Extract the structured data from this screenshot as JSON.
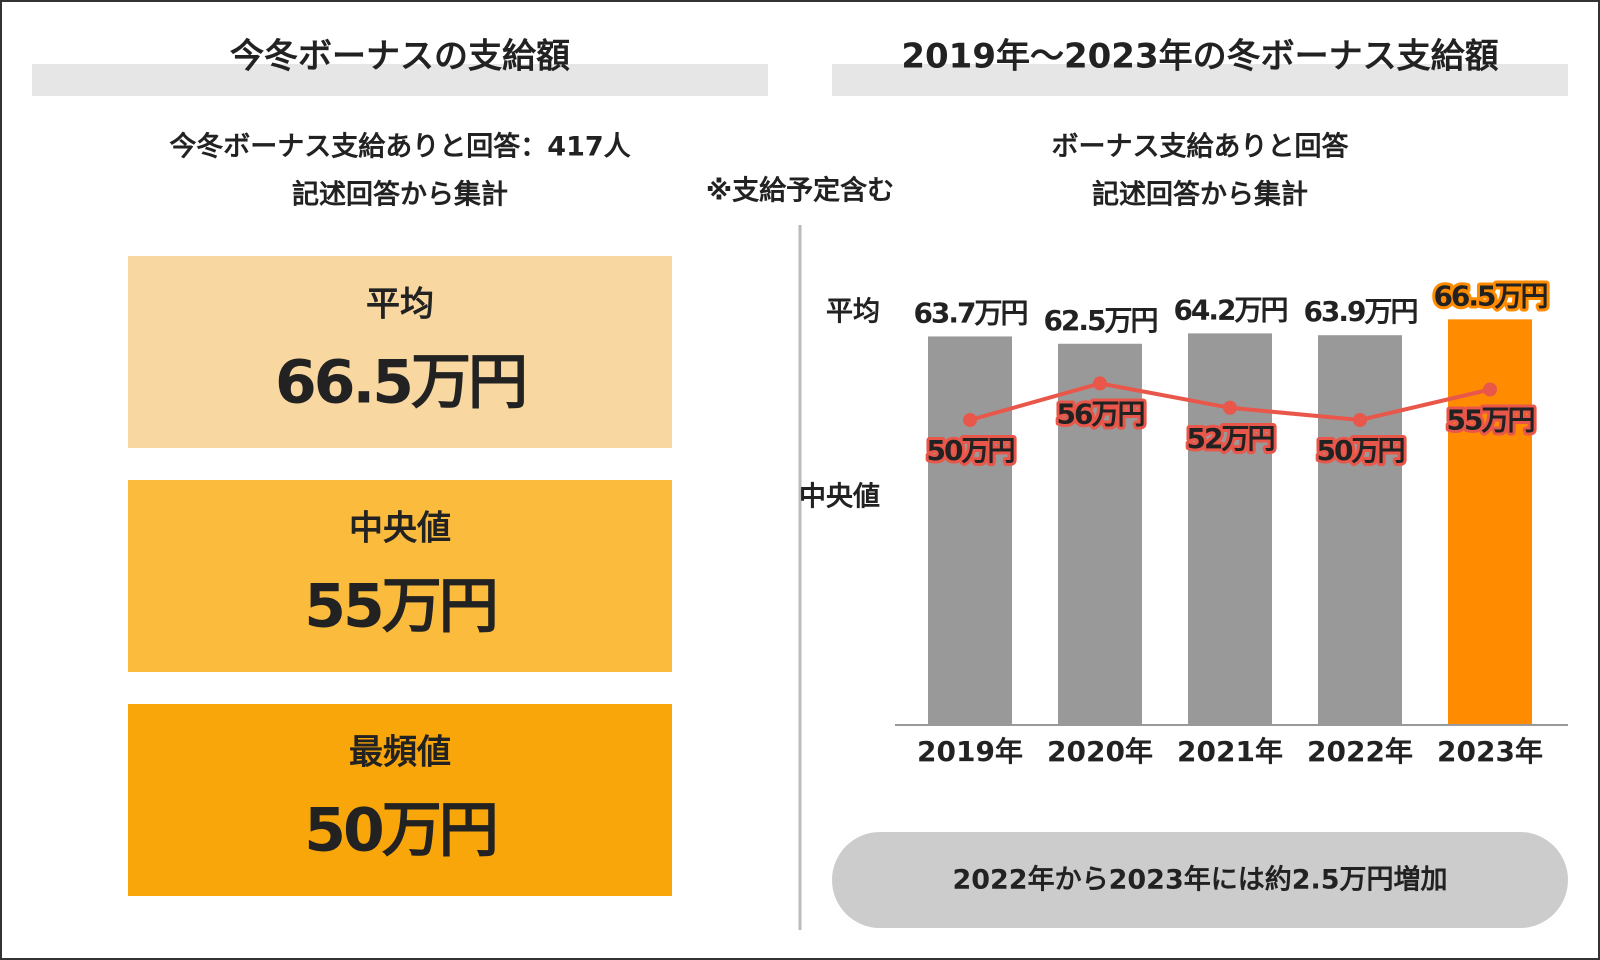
{
  "left": {
    "title": "今冬ボーナスの支給額",
    "subtitle": [
      "今冬ボーナス支給ありと回答：417人",
      "記述回答から集計"
    ],
    "cards": [
      {
        "label": "平均",
        "value": "66.5万円",
        "color": "#f8d7a0"
      },
      {
        "label": "中央値",
        "value": "55万円",
        "color": "#fbbb3c"
      },
      {
        "label": "最頻値",
        "value": "50万円",
        "color": "#f9a60a"
      }
    ]
  },
  "note": "※支給予定含む",
  "chart_data": {
    "type": "bar-line",
    "title": "2019年～2023年の冬ボーナス支給額",
    "subtitle": [
      "ボーナス支給ありと回答",
      "記述回答から集計"
    ],
    "categories": [
      "2019年",
      "2020年",
      "2021年",
      "2022年",
      "2023年"
    ],
    "series": [
      {
        "name": "平均",
        "type": "bar",
        "color": "#999999",
        "colors": [
          "#999999",
          "#999999",
          "#999999",
          "#999999",
          "#ff8c00"
        ],
        "values": [
          63.7,
          62.5,
          64.2,
          63.9,
          66.5
        ],
        "value_labels": [
          "63.7万円",
          "62.5万円",
          "64.2万円",
          "63.9万円",
          "66.5万円"
        ]
      },
      {
        "name": "中央値",
        "type": "line",
        "color": "#e8574a",
        "values": [
          50,
          56,
          52,
          50,
          55
        ],
        "value_labels": [
          "50万円",
          "56万円",
          "52万円",
          "50万円",
          "55万円"
        ]
      }
    ],
    "ylim": [
      0,
      80
    ],
    "annotation": "2022年から2023年には約2.5万円増加"
  }
}
